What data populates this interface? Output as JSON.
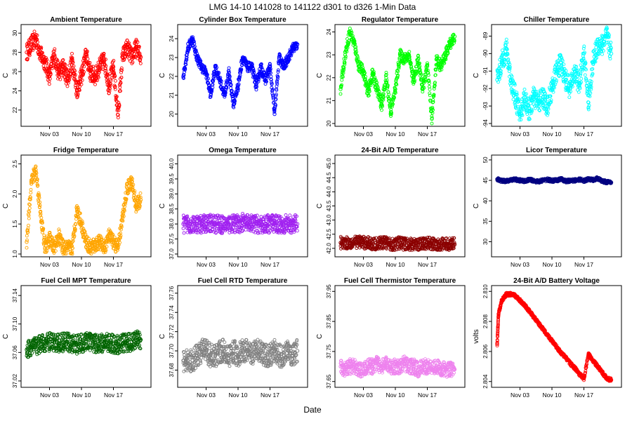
{
  "title": "LMG  14-10    141028 to 141122    d301 to d326   1-Min Data",
  "xlabel": "Date",
  "colors": {
    "red": "#ff0000",
    "blue": "#0000ff",
    "green": "#00ff00",
    "cyan": "#00ffff",
    "orange": "#ffa500",
    "purple": "#a020f0",
    "darkred": "#8b0000",
    "navy": "#000080",
    "darkgreen": "#006400",
    "gray": "#808080",
    "violet": "#ee82ee"
  },
  "chart_data": [
    {
      "type": "scatter",
      "title": "Ambient Temperature",
      "ylabel": "C",
      "color": "#ff0000",
      "ylim": [
        20.6,
        30.6
      ],
      "yticks": [
        22,
        24,
        26,
        28,
        30
      ],
      "ytick_labels": [
        "22",
        "24",
        "26",
        "28",
        "30"
      ],
      "xlim": [
        0,
        26
      ],
      "xticks": [
        5,
        12,
        19
      ],
      "xtick_labels": [
        "Nov 03",
        "Nov 10",
        "Nov 17"
      ],
      "x": [
        0,
        1,
        2,
        3,
        4,
        5,
        6,
        7,
        8,
        9,
        10,
        11,
        12,
        13,
        14,
        15,
        16,
        17,
        18,
        19,
        20,
        21,
        22,
        23,
        24,
        25
      ],
      "y": [
        28,
        28.8,
        29.5,
        27.8,
        27,
        25.5,
        27.8,
        25.8,
        26.5,
        25.2,
        27.2,
        24,
        25.5,
        27.8,
        25.8,
        25.5,
        26.5,
        27.3,
        24.5,
        26.5,
        21.5,
        27.5,
        28.5,
        27.5,
        28.5,
        27.5
      ],
      "band": 0.9
    },
    {
      "type": "scatter",
      "title": "Cylinder Box Temperature",
      "ylabel": "C",
      "color": "#0000ff",
      "ylim": [
        19.5,
        24.6
      ],
      "yticks": [
        20,
        21,
        22,
        23,
        24
      ],
      "ytick_labels": [
        "20",
        "21",
        "22",
        "23",
        "24"
      ],
      "xlim": [
        0,
        26
      ],
      "xticks": [
        5,
        12,
        19
      ],
      "xtick_labels": [
        "Nov 03",
        "Nov 10",
        "Nov 17"
      ],
      "x": [
        0,
        1,
        2,
        3,
        4,
        5,
        6,
        7,
        8,
        9,
        10,
        11,
        12,
        13,
        14,
        15,
        16,
        17,
        18,
        19,
        20,
        21,
        22,
        23,
        24,
        25
      ],
      "y": [
        22,
        23.5,
        24,
        23,
        22.5,
        22.2,
        21,
        22.5,
        21.8,
        21,
        22.2,
        20.5,
        21.5,
        23,
        22.5,
        22.5,
        21.5,
        22.5,
        21.8,
        22.5,
        20,
        23,
        22.5,
        23,
        23.5,
        23.7
      ],
      "band": 0.25
    },
    {
      "type": "scatter",
      "title": "Regulator Temperature",
      "ylabel": "C",
      "color": "#00ff00",
      "ylim": [
        20,
        24.2
      ],
      "yticks": [
        20,
        21,
        22,
        23,
        24
      ],
      "ytick_labels": [
        "20",
        "21",
        "22",
        "23",
        "24"
      ],
      "xlim": [
        0,
        26
      ],
      "xticks": [
        5,
        12,
        19
      ],
      "xtick_labels": [
        "Nov 03",
        "Nov 10",
        "Nov 17"
      ],
      "x": [
        0,
        1,
        2,
        3,
        4,
        5,
        6,
        7,
        8,
        9,
        10,
        11,
        12,
        13,
        14,
        15,
        16,
        17,
        18,
        19,
        20,
        21,
        22,
        23,
        24,
        25
      ],
      "y": [
        21.5,
        23,
        24,
        23.5,
        22.5,
        22.3,
        21.3,
        22.2,
        21.5,
        20.8,
        22,
        20.5,
        21.5,
        23,
        22.8,
        23,
        21.8,
        22.8,
        21.5,
        22.5,
        20.2,
        22.8,
        22.5,
        23,
        23.5,
        23.8
      ],
      "band": 0.25
    },
    {
      "type": "scatter",
      "title": "Chiller Temperature",
      "ylabel": "C",
      "color": "#00ffff",
      "ylim": [
        -94,
        -88.5
      ],
      "yticks": [
        -94,
        -93,
        -92,
        -91,
        -90,
        -89
      ],
      "ytick_labels": [
        "-94",
        "-93",
        "-92",
        "-91",
        "-90",
        "-89"
      ],
      "xlim": [
        0,
        26
      ],
      "xticks": [
        5,
        12,
        19
      ],
      "xtick_labels": [
        "Nov 03",
        "Nov 10",
        "Nov 17"
      ],
      "x": [
        0,
        1,
        2,
        3,
        4,
        5,
        6,
        7,
        8,
        9,
        10,
        11,
        12,
        13,
        14,
        15,
        16,
        17,
        18,
        19,
        20,
        21,
        22,
        23,
        24,
        25
      ],
      "y": [
        -91.5,
        -90.5,
        -89.7,
        -91.5,
        -92.5,
        -93.5,
        -92.5,
        -93.3,
        -92.5,
        -92.8,
        -92.5,
        -93,
        -92,
        -91,
        -90.5,
        -91.5,
        -92,
        -91,
        -91.8,
        -90,
        -92.8,
        -90.5,
        -89.5,
        -89.5,
        -89,
        -90
      ],
      "band": 0.6
    },
    {
      "type": "scatter",
      "title": "Fridge Temperature",
      "ylabel": "C",
      "color": "#ffa500",
      "ylim": [
        1,
        2.6
      ],
      "yticks": [
        1,
        1.5,
        2,
        2.5
      ],
      "ytick_labels": [
        "1.0",
        "1.5",
        "2.0",
        "2.5"
      ],
      "xlim": [
        0,
        26
      ],
      "xticks": [
        5,
        12,
        19
      ],
      "xtick_labels": [
        "Nov 03",
        "Nov 10",
        "Nov 17"
      ],
      "x": [
        0,
        1,
        2,
        3,
        4,
        5,
        6,
        7,
        8,
        9,
        10,
        11,
        12,
        13,
        14,
        15,
        16,
        17,
        18,
        19,
        20,
        21,
        22,
        23,
        24,
        25
      ],
      "y": [
        1.2,
        2.2,
        2.4,
        1.7,
        1.1,
        1.25,
        1.1,
        1.3,
        1.1,
        1.1,
        1.1,
        1.75,
        1.5,
        1.2,
        1.1,
        1.15,
        1.2,
        1.1,
        1.3,
        1.2,
        1.1,
        1.6,
        2.1,
        2.2,
        1.8,
        1.9
      ],
      "band": 0.12
    },
    {
      "type": "scatter",
      "title": "Omega Temperature",
      "ylabel": "C",
      "color": "#a020f0",
      "ylim": [
        37,
        40.2
      ],
      "yticks": [
        37,
        37.5,
        38,
        38.5,
        39,
        39.5,
        40
      ],
      "ytick_labels": [
        "37.0",
        "37.5",
        "38.0",
        "38.5",
        "39.0",
        "39.5",
        "40.0"
      ],
      "xlim": [
        0,
        26
      ],
      "xticks": [
        5,
        12,
        19
      ],
      "xtick_labels": [
        "Nov 03",
        "Nov 10",
        "Nov 17"
      ],
      "x": [
        0,
        1,
        2,
        3,
        4,
        5,
        6,
        7,
        8,
        9,
        10,
        11,
        12,
        13,
        14,
        15,
        16,
        17,
        18,
        19,
        20,
        21,
        22,
        23,
        24,
        25
      ],
      "y": [
        38,
        38,
        38,
        37.95,
        38,
        38,
        38.05,
        38,
        38,
        37.95,
        38,
        38,
        38,
        38.05,
        38,
        38,
        38,
        37.95,
        38,
        38,
        38,
        38,
        38,
        38,
        38,
        38
      ],
      "band": 0.3
    },
    {
      "type": "scatter",
      "title": "24-Bit A/D Temperature",
      "ylabel": "C",
      "color": "#8b0000",
      "ylim": [
        41.8,
        45.2
      ],
      "yticks": [
        42,
        42.5,
        43,
        43.5,
        44,
        44.5,
        45
      ],
      "ytick_labels": [
        "42.0",
        "42.5",
        "43.0",
        "43.5",
        "44.0",
        "44.5",
        "45.0"
      ],
      "xlim": [
        0,
        26
      ],
      "xticks": [
        5,
        12,
        19
      ],
      "xtick_labels": [
        "Nov 03",
        "Nov 10",
        "Nov 17"
      ],
      "x": [
        0,
        1,
        2,
        3,
        4,
        5,
        6,
        7,
        8,
        9,
        10,
        11,
        12,
        13,
        14,
        15,
        16,
        17,
        18,
        19,
        20,
        21,
        22,
        23,
        24,
        25
      ],
      "y": [
        42.2,
        42.2,
        42.2,
        42.2,
        42.25,
        42.2,
        42.2,
        42.15,
        42.15,
        42.2,
        42.2,
        42.15,
        42.15,
        42.2,
        42.15,
        42.15,
        42.15,
        42.15,
        42.15,
        42.2,
        42.15,
        42.15,
        42.15,
        42.15,
        42.15,
        42.15
      ],
      "band": 0.22
    },
    {
      "type": "scatter",
      "title": "Licor Temperature",
      "ylabel": "C",
      "color": "#000080",
      "ylim": [
        27,
        50.5
      ],
      "yticks": [
        30,
        35,
        40,
        45,
        50
      ],
      "ytick_labels": [
        "30",
        "35",
        "40",
        "45",
        "50"
      ],
      "xlim": [
        0,
        26
      ],
      "xticks": [
        5,
        12,
        19
      ],
      "xtick_labels": [
        "Nov 03",
        "Nov 10",
        "Nov 17"
      ],
      "x": [
        0,
        1,
        2,
        3,
        4,
        5,
        6,
        7,
        8,
        9,
        10,
        11,
        12,
        13,
        14,
        15,
        16,
        17,
        18,
        19,
        20,
        21,
        22,
        23,
        24,
        25
      ],
      "y": [
        45.3,
        44.9,
        44.8,
        45.1,
        45.2,
        45,
        44.8,
        45.2,
        44.9,
        44.7,
        45,
        45.2,
        44.9,
        45,
        45.3,
        44.8,
        44.9,
        45,
        45.2,
        44.9,
        45.3,
        45.1,
        45.5,
        44.8,
        44.6,
        44.5
      ],
      "band": 0.4
    },
    {
      "type": "scatter",
      "title": "Fuel Cell MPT Temperature",
      "ylabel": "C",
      "color": "#006400",
      "ylim": [
        37.015,
        37.15
      ],
      "yticks": [
        37.02,
        37.06,
        37.1,
        37.14
      ],
      "ytick_labels": [
        "37.02",
        "37.06",
        "37.10",
        "37.14"
      ],
      "xlim": [
        0,
        26
      ],
      "xticks": [
        5,
        12,
        19
      ],
      "xtick_labels": [
        "Nov 03",
        "Nov 10",
        "Nov 17"
      ],
      "x": [
        0,
        1,
        2,
        3,
        4,
        5,
        6,
        7,
        8,
        9,
        10,
        11,
        12,
        13,
        14,
        15,
        16,
        17,
        18,
        19,
        20,
        21,
        22,
        23,
        24,
        25
      ],
      "y": [
        37.064,
        37.067,
        37.07,
        37.071,
        37.073,
        37.075,
        37.074,
        37.073,
        37.074,
        37.075,
        37.072,
        37.071,
        37.073,
        37.075,
        37.074,
        37.073,
        37.072,
        37.073,
        37.074,
        37.072,
        37.071,
        37.073,
        37.074,
        37.075,
        37.077,
        37.078
      ],
      "band": 0.013
    },
    {
      "type": "scatter",
      "title": "Fuel Cell RTD Temperature",
      "ylabel": "C",
      "color": "#808080",
      "ylim": [
        37.665,
        37.765
      ],
      "yticks": [
        37.68,
        37.7,
        37.72,
        37.74,
        37.76
      ],
      "ytick_labels": [
        "37.68",
        "37.70",
        "37.72",
        "37.74",
        "37.76"
      ],
      "xlim": [
        0,
        26
      ],
      "xticks": [
        5,
        12,
        19
      ],
      "xtick_labels": [
        "Nov 03",
        "Nov 10",
        "Nov 17"
      ],
      "x": [
        0,
        1,
        2,
        3,
        4,
        5,
        6,
        7,
        8,
        9,
        10,
        11,
        12,
        13,
        14,
        15,
        16,
        17,
        18,
        19,
        20,
        21,
        22,
        23,
        24,
        25
      ],
      "y": [
        37.69,
        37.69,
        37.69,
        37.695,
        37.7,
        37.7,
        37.695,
        37.695,
        37.7,
        37.7,
        37.695,
        37.7,
        37.695,
        37.7,
        37.7,
        37.695,
        37.7,
        37.7,
        37.695,
        37.695,
        37.7,
        37.695,
        37.695,
        37.7,
        37.695,
        37.7
      ],
      "band": 0.012
    },
    {
      "type": "scatter",
      "title": "Fuel Cell Thermistor Temperature",
      "ylabel": "C",
      "color": "#ee82ee",
      "ylim": [
        37.64,
        37.96
      ],
      "yticks": [
        37.65,
        37.75,
        37.85,
        37.95
      ],
      "ytick_labels": [
        "37.65",
        "37.75",
        "37.85",
        "37.95"
      ],
      "xlim": [
        0,
        26
      ],
      "xticks": [
        5,
        12,
        19
      ],
      "xtick_labels": [
        "Nov 03",
        "Nov 10",
        "Nov 17"
      ],
      "x": [
        0,
        1,
        2,
        3,
        4,
        5,
        6,
        7,
        8,
        9,
        10,
        11,
        12,
        13,
        14,
        15,
        16,
        17,
        18,
        19,
        20,
        21,
        22,
        23,
        24,
        25
      ],
      "y": [
        37.7,
        37.69,
        37.7,
        37.7,
        37.69,
        37.69,
        37.7,
        37.7,
        37.71,
        37.7,
        37.71,
        37.7,
        37.7,
        37.7,
        37.71,
        37.7,
        37.7,
        37.69,
        37.7,
        37.7,
        37.7,
        37.7,
        37.69,
        37.69,
        37.69,
        37.69
      ],
      "band": 0.025
    },
    {
      "type": "scatter",
      "title": "24-Bit A/D Battery Voltage",
      "ylabel": "volts",
      "color": "#ff0000",
      "ylim": [
        2.8038,
        2.8102
      ],
      "yticks": [
        2.804,
        2.806,
        2.808,
        2.81
      ],
      "ytick_labels": [
        "2.804",
        "2.806",
        "2.808",
        "2.810"
      ],
      "xlim": [
        0,
        26
      ],
      "xticks": [
        5,
        12,
        19
      ],
      "xtick_labels": [
        "Nov 03",
        "Nov 10",
        "Nov 17"
      ],
      "x": [
        0,
        0.3,
        1,
        2,
        3,
        4,
        5,
        6,
        7,
        8,
        9,
        10,
        11,
        12,
        13,
        14,
        15,
        16,
        17,
        18,
        19,
        20,
        21,
        22,
        23,
        24,
        25
      ],
      "y": [
        2.8065,
        2.8085,
        2.8094,
        2.8098,
        2.8098,
        2.8097,
        2.8094,
        2.8091,
        2.8087,
        2.8083,
        2.8079,
        2.8075,
        2.8071,
        2.8067,
        2.8063,
        2.8059,
        2.8056,
        2.8052,
        2.8049,
        2.8045,
        2.8042,
        2.8058,
        2.8054,
        2.805,
        2.8046,
        2.8042,
        2.8041
      ],
      "band": 0.00012
    }
  ]
}
